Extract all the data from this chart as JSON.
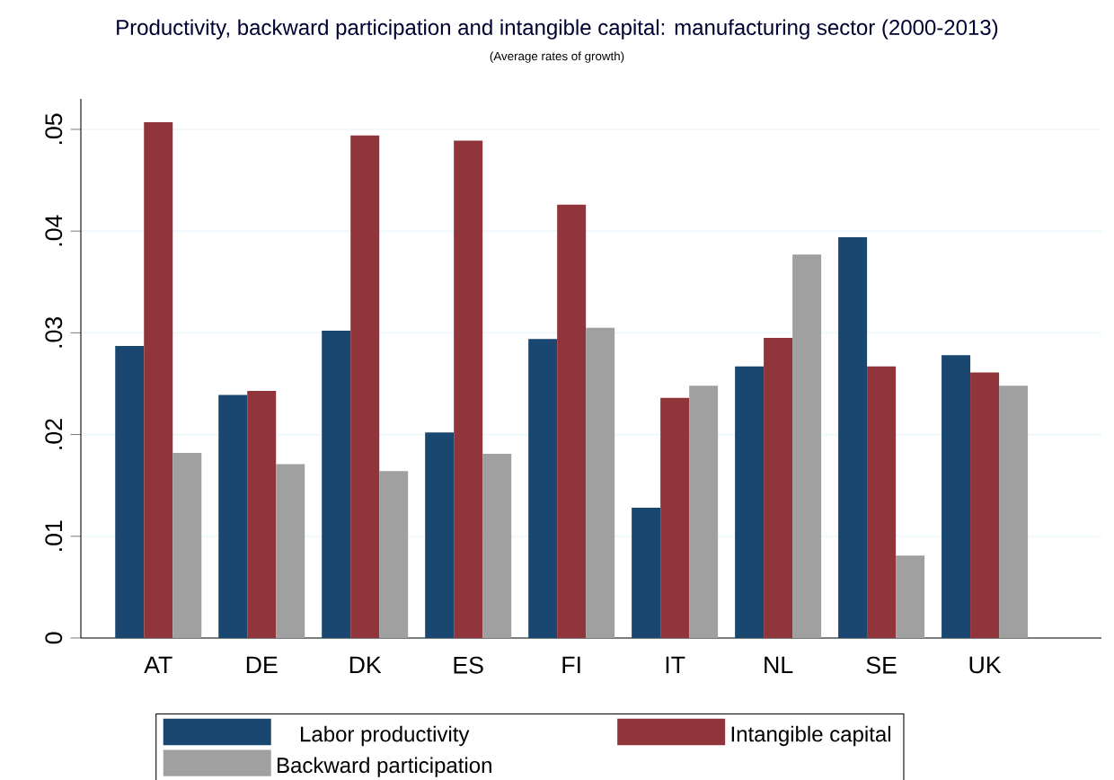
{
  "chart_data": {
    "type": "bar",
    "title": "Productivity, backward participation and intangible capital: manufacturing sector (2000-2013)",
    "subtitle": "(Average rates of growth)",
    "categories": [
      "AT",
      "DE",
      "DK",
      "ES",
      "FI",
      "IT",
      "NL",
      "SE",
      "UK"
    ],
    "series": [
      {
        "name": "Labor productivity",
        "color": "#1a476f",
        "values": [
          0.0287,
          0.0239,
          0.0302,
          0.0202,
          0.0294,
          0.0128,
          0.0267,
          0.0394,
          0.0278
        ]
      },
      {
        "name": "Intangible capital",
        "color": "#90353b",
        "values": [
          0.0507,
          0.0243,
          0.0494,
          0.0489,
          0.0426,
          0.0236,
          0.0295,
          0.0267,
          0.0261
        ]
      },
      {
        "name": "Backward participation",
        "color": "#a0a0a0",
        "values": [
          0.0182,
          0.0171,
          0.0164,
          0.0181,
          0.0305,
          0.0248,
          0.0377,
          0.0081,
          0.0248
        ]
      }
    ],
    "ylim": [
      0,
      0.053
    ],
    "yticks": [
      {
        "value": 0,
        "label": "0"
      },
      {
        "value": 0.01,
        "label": ".01"
      },
      {
        "value": 0.02,
        "label": ".02"
      },
      {
        "value": 0.03,
        "label": ".03"
      },
      {
        "value": 0.04,
        "label": ".04"
      },
      {
        "value": 0.05,
        "label": ".05"
      }
    ],
    "grid": "y",
    "legend": "bottom"
  }
}
